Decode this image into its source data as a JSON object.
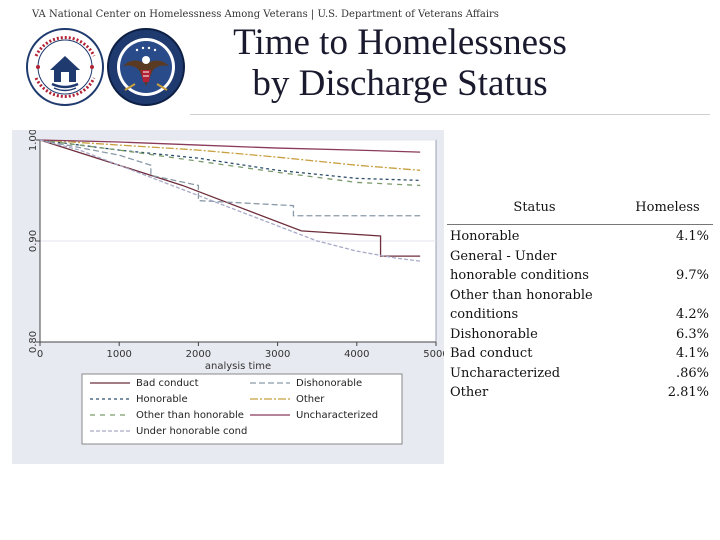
{
  "header": {
    "text": "VA National Center on Homelessness Among Veterans | U.S. Department of Veterans Affairs"
  },
  "title": {
    "line1": "Time to Homelessness",
    "line2": "by Discharge Status"
  },
  "colors": {
    "accent": "#1a1a2e",
    "va_blue": "#1f3a6e",
    "panel_bg": "#e8eaf1"
  },
  "icons": {
    "left_logo": "homelessness-center-seal-icon",
    "right_logo": "va-seal-icon"
  },
  "chart_data": {
    "type": "line",
    "xlabel": "analysis time",
    "ylabel": "",
    "xlim": [
      0,
      5000
    ],
    "ylim": [
      0.8,
      1.0
    ],
    "xticks": [
      0,
      1000,
      2000,
      3000,
      4000,
      5000
    ],
    "xtick_labels": [
      "0",
      "1000",
      "2000",
      "3000",
      "4000",
      "5000"
    ],
    "yticks": [
      0.8,
      0.9,
      1.0
    ],
    "ytick_labels": [
      "0.80",
      "0.90",
      "1.00"
    ],
    "grid": true,
    "legend_position": "bottom",
    "series": [
      {
        "name": "Bad conduct",
        "color": "#6e2d3c",
        "x": [
          0,
          1800,
          1800,
          3300,
          3300,
          4300,
          4300,
          4800
        ],
        "y": [
          1.0,
          0.955,
          0.955,
          0.91,
          0.91,
          0.905,
          0.885,
          0.885
        ]
      },
      {
        "name": "Dishonorable",
        "color": "#8a9aa8",
        "x": [
          0,
          1000,
          1400,
          1400,
          2000,
          2000,
          3200,
          3200,
          4800
        ],
        "y": [
          1.0,
          0.985,
          0.975,
          0.965,
          0.955,
          0.94,
          0.935,
          0.925,
          0.925
        ]
      },
      {
        "name": "Honorable",
        "color": "#2f4f6e",
        "x": [
          0,
          1000,
          2000,
          3000,
          4000,
          4800
        ],
        "y": [
          1.0,
          0.99,
          0.982,
          0.97,
          0.962,
          0.96
        ]
      },
      {
        "name": "Other",
        "color": "#c8a040",
        "x": [
          0,
          1000,
          2000,
          3000,
          4000,
          4800
        ],
        "y": [
          1.0,
          0.995,
          0.99,
          0.983,
          0.975,
          0.97
        ]
      },
      {
        "name": "Other than honorable",
        "color": "#7a9a6a",
        "x": [
          0,
          1000,
          2000,
          3000,
          4000,
          4800
        ],
        "y": [
          1.0,
          0.99,
          0.979,
          0.968,
          0.958,
          0.955
        ]
      },
      {
        "name": "Uncharacterized",
        "color": "#8a3a5a",
        "x": [
          0,
          1000,
          2000,
          3000,
          4000,
          4800
        ],
        "y": [
          1.0,
          0.998,
          0.995,
          0.992,
          0.99,
          0.988
        ]
      },
      {
        "name": "Under honorable cond",
        "color": "#a8aac8",
        "x": [
          0,
          500,
          1000,
          1500,
          2000,
          2500,
          3000,
          3500,
          4000,
          4500,
          4800
        ],
        "y": [
          1.0,
          0.99,
          0.975,
          0.96,
          0.945,
          0.93,
          0.915,
          0.9,
          0.89,
          0.883,
          0.88
        ]
      }
    ]
  },
  "table": {
    "col_status": "Status",
    "col_homeless": "Homeless",
    "rows": [
      {
        "lines": [
          "Honorable"
        ],
        "value": "4.1%"
      },
      {
        "lines": [
          "General - Under",
          "honorable conditions"
        ],
        "value": "9.7%"
      },
      {
        "lines": [
          "Other than honorable",
          "conditions"
        ],
        "value": "4.2%"
      },
      {
        "lines": [
          "Dishonorable"
        ],
        "value": "6.3%"
      },
      {
        "lines": [
          "Bad conduct"
        ],
        "value": "4.1%"
      },
      {
        "lines": [
          "Uncharacterized"
        ],
        "value": ".86%"
      },
      {
        "lines": [
          "Other"
        ],
        "value": "2.81%"
      }
    ]
  }
}
